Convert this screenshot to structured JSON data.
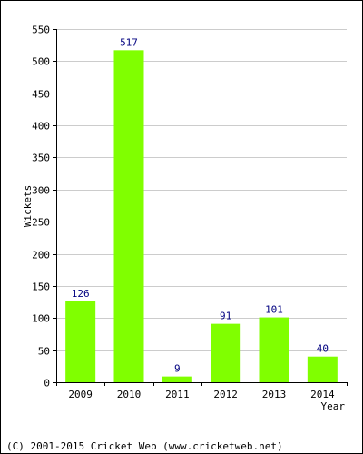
{
  "chart_data": {
    "type": "bar",
    "title": "",
    "xlabel": "Year",
    "ylabel": "Wickets",
    "categories": [
      "2009",
      "2010",
      "2011",
      "2012",
      "2013",
      "2014"
    ],
    "values": [
      126,
      517,
      9,
      91,
      101,
      40
    ],
    "data_labels": [
      "126",
      "517",
      "9",
      "91",
      "101",
      "40"
    ],
    "ylim": [
      0,
      550
    ],
    "yticks": [
      0,
      50,
      100,
      150,
      200,
      250,
      300,
      350,
      400,
      450,
      500,
      550
    ],
    "grid": "horizontal",
    "legend": "none",
    "bar_color": "#80ff00",
    "data_label_color": "#000080",
    "grid_color": "#cccccc"
  },
  "footer": {
    "copyright": "(C) 2001-2015 Cricket Web (www.cricketweb.net)"
  }
}
